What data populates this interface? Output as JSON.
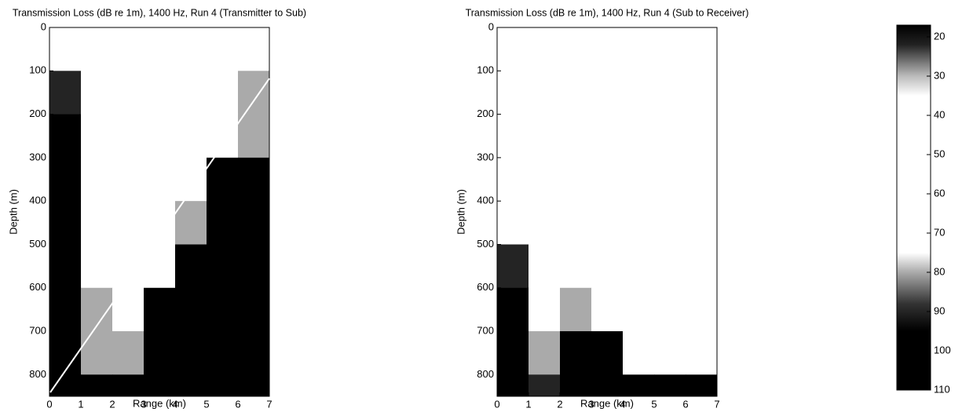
{
  "chart_data": [
    {
      "type": "heatmap",
      "title": "Transmission Loss (dB re 1m), 1400 Hz, Run 4 (Transmitter to Sub)",
      "x_label": "Range (km)",
      "y_label": "Depth (m)",
      "xbins": [
        0,
        1,
        2,
        3,
        4,
        5,
        6,
        7
      ],
      "ybins": [
        0,
        100,
        200,
        300,
        400,
        500,
        600,
        700,
        800,
        850
      ],
      "z": [
        [
          60,
          55,
          55,
          55,
          35,
          50,
          50
        ],
        [
          90,
          60,
          60,
          55,
          55,
          55,
          80
        ],
        [
          100,
          60,
          55,
          60,
          60,
          60,
          80
        ],
        [
          100,
          60,
          60,
          60,
          60,
          95,
          100
        ],
        [
          100,
          70,
          60,
          60,
          80,
          100,
          100
        ],
        [
          100,
          75,
          60,
          65,
          100,
          100,
          100
        ],
        [
          100,
          80,
          60,
          95,
          100,
          100,
          100
        ],
        [
          100,
          80,
          80,
          100,
          100,
          100,
          100
        ],
        [
          100,
          100,
          105,
          105,
          105,
          105,
          105
        ]
      ],
      "xlim": [
        0,
        7
      ],
      "ylim": [
        0,
        850
      ],
      "y_inverted": true,
      "xticks": [
        0,
        1,
        2,
        3,
        4,
        5,
        6,
        7
      ],
      "yticks": [
        0,
        100,
        200,
        300,
        400,
        500,
        600,
        700,
        800
      ]
    },
    {
      "type": "heatmap",
      "title": "Transmission Loss (dB re 1m), 1400 Hz, Run 4 (Sub to Receiver)",
      "x_label": "Range (km)",
      "y_label": "Depth (m)",
      "xbins": [
        0,
        1,
        2,
        3,
        4,
        5,
        6,
        7
      ],
      "ybins": [
        0,
        100,
        200,
        300,
        400,
        500,
        600,
        700,
        800,
        850
      ],
      "z": [
        [
          60,
          60,
          60,
          60,
          40,
          60,
          60
        ],
        [
          60,
          60,
          60,
          60,
          50,
          60,
          60
        ],
        [
          60,
          60,
          60,
          60,
          60,
          60,
          60
        ],
        [
          60,
          60,
          60,
          60,
          60,
          60,
          60
        ],
        [
          60,
          60,
          60,
          60,
          60,
          60,
          60
        ],
        [
          90,
          60,
          70,
          60,
          60,
          60,
          60
        ],
        [
          100,
          60,
          80,
          60,
          60,
          60,
          65
        ],
        [
          100,
          80,
          100,
          95,
          60,
          60,
          70
        ],
        [
          105,
          90,
          105,
          105,
          105,
          105,
          95
        ]
      ],
      "xlim": [
        0,
        7
      ],
      "ylim": [
        0,
        850
      ],
      "y_inverted": true,
      "xticks": [
        0,
        1,
        2,
        3,
        4,
        5,
        6,
        7
      ],
      "yticks": [
        0,
        100,
        200,
        300,
        400,
        500,
        600,
        700,
        800
      ]
    },
    {
      "type": "colorbar",
      "zlim": [
        17,
        110
      ],
      "ticks": [
        20,
        30,
        40,
        50,
        60,
        70,
        80,
        90,
        100,
        110
      ],
      "colormap": [
        [
          17,
          "#000000"
        ],
        [
          22,
          "#222222"
        ],
        [
          30,
          "#bbbbbb"
        ],
        [
          35,
          "#ffffff"
        ],
        [
          75,
          "#ffffff"
        ],
        [
          80,
          "#aaaaaa"
        ],
        [
          88,
          "#333333"
        ],
        [
          95,
          "#000000"
        ],
        [
          110,
          "#000000"
        ]
      ]
    }
  ]
}
